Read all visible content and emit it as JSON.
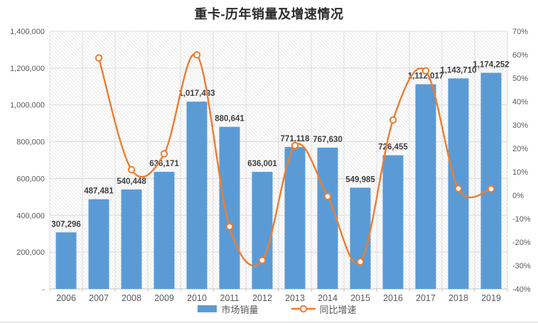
{
  "page": {
    "title": "重卡-历年销量及增速情况"
  },
  "legend": {
    "items": [
      {
        "label": "市场销量",
        "type": "bar"
      },
      {
        "label": "同比增速",
        "type": "line"
      }
    ]
  },
  "chart_data": {
    "type": "combo_bar_line",
    "title": "重卡-历年销量及增速情况",
    "categories": [
      "2006",
      "2007",
      "2008",
      "2009",
      "2010",
      "2011",
      "2012",
      "2013",
      "2014",
      "2015",
      "2016",
      "2017",
      "2018",
      "2019"
    ],
    "series": [
      {
        "name": "市场销量",
        "type": "bar",
        "axis": "left",
        "values": [
          307296,
          487481,
          540448,
          636171,
          1017433,
          880641,
          636001,
          771118,
          767630,
          549985,
          726455,
          1112017,
          1143710,
          1174252
        ],
        "data_labels": [
          "307,296",
          "487,481",
          "540,448",
          "636,171",
          "1,017,433",
          "880,641",
          "636,001",
          "771,118",
          "767,630",
          "549,985",
          "726,455",
          "1,112,017",
          "1,143,710",
          "1,174,252"
        ]
      },
      {
        "name": "同比增速",
        "type": "line",
        "axis": "right",
        "marker": "open-circle",
        "values_percent": [
          null,
          58.6,
          10.9,
          17.7,
          59.9,
          -13.4,
          -27.8,
          21.2,
          -0.5,
          -28.4,
          32.1,
          53.1,
          2.8,
          2.7
        ]
      }
    ],
    "left_axis": {
      "min": 0,
      "max": 1400000,
      "step": 200000,
      "tick_labels_top_down": [
        "1,400,000",
        "1,200,000",
        "1,000,000",
        "800,000",
        "600,000",
        "400,000",
        "200,000",
        "-"
      ]
    },
    "right_axis": {
      "min": -40,
      "max": 70,
      "step": 10,
      "tick_labels_top_down": [
        "70%",
        "60%",
        "50%",
        "40%",
        "30%",
        "20%",
        "10%",
        "0%",
        "-10%",
        "-20%",
        "-30%",
        "-40%"
      ]
    },
    "grid": true,
    "legend_position": "bottom",
    "plot_background": "diagonal-hatch"
  },
  "colors": {
    "bar": "#5b9bd5",
    "line": "#ed7d31",
    "marker_fill": "#ffffff",
    "grid": "#dcdcdc",
    "hatch": "#e9e9e9",
    "axis_line": "#c3c3c3",
    "axis_text": "#595959",
    "data_label": "#3f3f3f",
    "title": "#2b2b2b"
  }
}
